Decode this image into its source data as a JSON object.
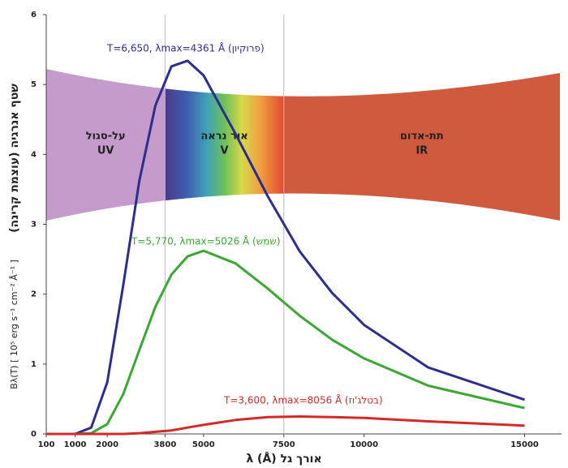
{
  "chart_data": {
    "type": "line",
    "x": [
      100,
      1000,
      1500,
      2000,
      2500,
      3000,
      3500,
      4000,
      4500,
      5000,
      6000,
      7000,
      8000,
      9000,
      10000,
      12000,
      15000
    ],
    "series": [
      {
        "name": "T=6,650, λmax=4361 Å (פרוקיון)",
        "color": "#2b2e8f",
        "values": [
          0,
          0,
          0.09,
          0.74,
          2.13,
          3.62,
          4.7,
          5.26,
          5.34,
          5.13,
          4.29,
          3.4,
          2.61,
          2.02,
          1.56,
          0.95,
          0.49
        ]
      },
      {
        "name": "T=5,770, λmax=5026 Å (שמש)",
        "color": "#3aa832",
        "values": [
          0,
          0,
          0.01,
          0.14,
          0.57,
          1.2,
          1.82,
          2.28,
          2.54,
          2.62,
          2.44,
          2.08,
          1.69,
          1.35,
          1.08,
          0.69,
          0.37
        ]
      },
      {
        "name": "T=3,600, λmax=8056 Å (בטלג'וז)",
        "color": "#d42a25",
        "values": [
          0,
          0,
          0,
          0,
          0,
          0.01,
          0.03,
          0.05,
          0.09,
          0.13,
          0.2,
          0.24,
          0.25,
          0.24,
          0.23,
          0.18,
          0.12
        ]
      }
    ],
    "regions": [
      {
        "name": "על-סגול",
        "short": "UV",
        "start": 100,
        "end": 3800,
        "color": "#c49bcb"
      },
      {
        "name": "אור נראה",
        "short": "V",
        "start": 3800,
        "end": 7500,
        "color": "rainbow"
      },
      {
        "name": "תת-אדום",
        "short": "IR",
        "start": 7500,
        "end": 16100,
        "color": "#cf5a3e"
      }
    ],
    "x_label": "λ (Å) אורך גל",
    "y_label": "שטף אנרגיה (עוצמת קרינה)",
    "y_units": "Bλ(T) [ 10⁵ erg s⁻¹ cm⁻² Å⁻¹ ]",
    "xlim": [
      100,
      16100
    ],
    "ylim": [
      0,
      6
    ],
    "xticks": [
      100,
      1000,
      2000,
      3800,
      5000,
      7500,
      10000,
      15000
    ],
    "yticks": [
      0,
      1,
      2,
      3,
      4,
      5,
      6
    ],
    "vlines": [
      3800,
      7500
    ]
  }
}
